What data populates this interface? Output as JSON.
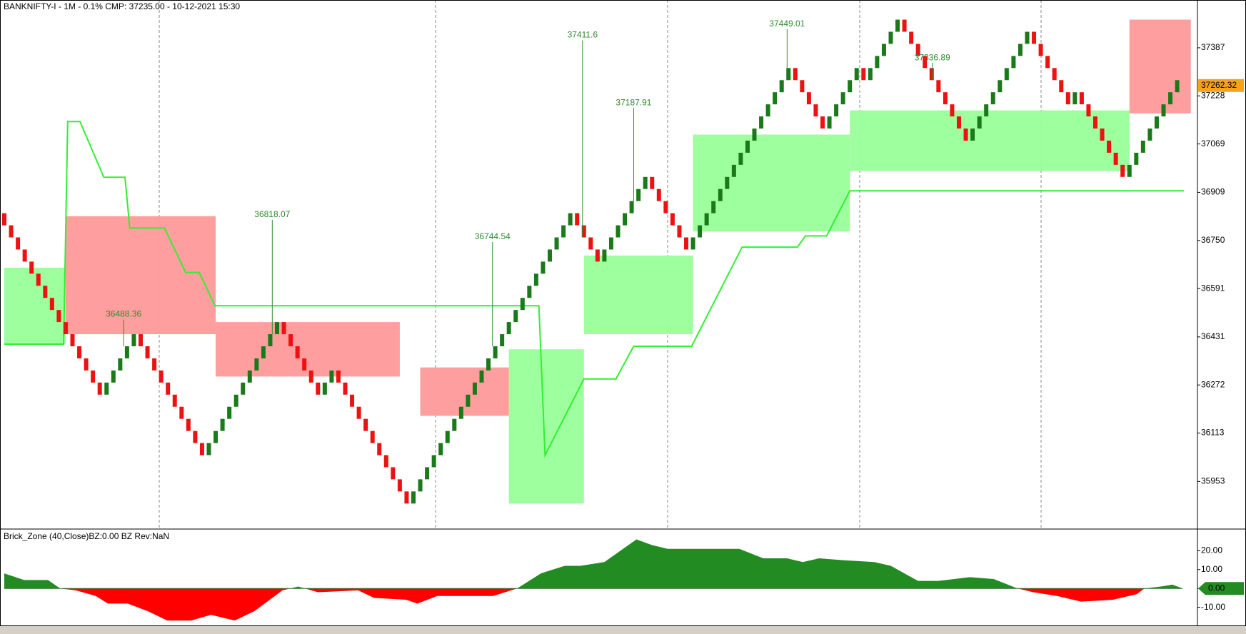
{
  "chart_data": [
    {
      "type": "renko",
      "title": "BANKNIFTY-I - 1M - 0.1% CMP: 37235.00 - 10-12-2021 15:30",
      "open": 36840,
      "values": [
        36800,
        36760,
        36720,
        36680,
        36640,
        36600,
        36560,
        36520,
        36480,
        36440,
        36400,
        36360,
        36320,
        36280,
        36240,
        36280,
        36320,
        36360,
        36400,
        36440,
        36400,
        36360,
        36320,
        36280,
        36240,
        36200,
        36160,
        36120,
        36080,
        36040,
        36080,
        36120,
        36160,
        36200,
        36240,
        36280,
        36320,
        36360,
        36400,
        36440,
        36480,
        36440,
        36400,
        36360,
        36320,
        36280,
        36240,
        36280,
        36320,
        36280,
        36240,
        36200,
        36160,
        36120,
        36080,
        36040,
        36000,
        35960,
        35920,
        35880,
        35920,
        35960,
        36000,
        36040,
        36080,
        36120,
        36160,
        36200,
        36240,
        36280,
        36320,
        36360,
        36400,
        36440,
        36480,
        36520,
        36560,
        36600,
        36640,
        36680,
        36720,
        36760,
        36800,
        36840,
        36800,
        36760,
        36720,
        36680,
        36720,
        36760,
        36800,
        36840,
        36880,
        36920,
        36960,
        36920,
        36880,
        36840,
        36800,
        36760,
        36720,
        36760,
        36800,
        36840,
        36880,
        36920,
        36960,
        37000,
        37040,
        37080,
        37120,
        37160,
        37200,
        37240,
        37280,
        37320,
        37280,
        37240,
        37200,
        37160,
        37120,
        37160,
        37200,
        37240,
        37280,
        37320,
        37280,
        37320,
        37360,
        37400,
        37440,
        37480,
        37440,
        37400,
        37360,
        37320,
        37280,
        37240,
        37200,
        37160,
        37120,
        37080,
        37120,
        37160,
        37200,
        37240,
        37280,
        37320,
        37360,
        37400,
        37440,
        37400,
        37360,
        37320,
        37280,
        37240,
        37200,
        37240,
        37200,
        37160,
        37120,
        37080,
        37040,
        37000,
        36960,
        37000,
        37040,
        37080,
        37120,
        37160,
        37200,
        37240,
        37280
      ],
      "up_color": "#1a7a1a",
      "down_color": "#ee1111",
      "ylim": [
        35798,
        37545
      ],
      "yticks": [
        35953,
        36113,
        36272,
        36431,
        36591,
        36750,
        36909,
        37069,
        37228,
        37387
      ],
      "zones": [
        {
          "color": "#99ff99",
          "start": 0,
          "end": 9,
          "lower": 36407,
          "upper": 36660
        },
        {
          "color": "#ff9999",
          "start": 9,
          "end": 31,
          "lower": 36440,
          "upper": 36830
        },
        {
          "color": "#ff9999",
          "start": 31,
          "end": 58,
          "lower": 36300,
          "upper": 36480
        },
        {
          "color": "#ff9999",
          "start": 61,
          "end": 74,
          "lower": 36170,
          "upper": 36330
        },
        {
          "color": "#99ff99",
          "start": 74,
          "end": 85,
          "lower": 35880,
          "upper": 36390
        },
        {
          "color": "#99ff99",
          "start": 85,
          "end": 101,
          "lower": 36440,
          "upper": 36700
        },
        {
          "color": "#99ff99",
          "start": 101,
          "end": 124,
          "lower": 36780,
          "upper": 37100
        },
        {
          "color": "#99ff99",
          "start": 124,
          "end": 165,
          "lower": 36980,
          "upper": 37180
        },
        {
          "color": "#ff9999",
          "start": 165,
          "end": 174,
          "lower": 37170,
          "upper": 37480
        }
      ],
      "stop_line": {
        "color": "#33ee33",
        "x": [
          0,
          8.7,
          9.3,
          11.1,
          14.6,
          17.7,
          18.4,
          23.5,
          26.6,
          28.6,
          30.9,
          78.4,
          79.3,
          85,
          89.7,
          92.3,
          100.8,
          108.2,
          116.3,
          117.5,
          120.6,
          124,
          173
        ],
        "values": [
          36407,
          36407,
          37143,
          37143,
          36959,
          36959,
          36791,
          36791,
          36644,
          36644,
          36534,
          36534,
          36040,
          36292,
          36292,
          36400,
          36400,
          36728,
          36728,
          36765,
          36765,
          36914,
          36914
        ]
      },
      "annotations": [
        {
          "x": 17.5,
          "value": 36488.36
        },
        {
          "x": 39.3,
          "value": 36818.07
        },
        {
          "x": 71.6,
          "value": 36744.54
        },
        {
          "x": 84.8,
          "value": 37411.6
        },
        {
          "x": 92.3,
          "value": 37187.91
        },
        {
          "x": 114.8,
          "value": 37449.01
        },
        {
          "x": 136.1,
          "value": 37336.89
        }
      ],
      "last_price": 37262.32,
      "last_price_color": "#f7a21b"
    },
    {
      "type": "area",
      "title": "Brick_Zone (40,Close)BZ:0.00 BZ Rev:NaN",
      "x": [
        0,
        2.9,
        6.4,
        8.2,
        10.5,
        13.4,
        15.2,
        18.1,
        21,
        23.9,
        27.4,
        30.3,
        33.8,
        36.7,
        40.8,
        43.1,
        46,
        51.9,
        54.2,
        58.9,
        60.6,
        63.5,
        71.7,
        75.2,
        78.7,
        82.2,
        84.5,
        88,
        92.7,
        95,
        97.3,
        107.8,
        111.3,
        114.8,
        117.1,
        119.5,
        123,
        127.6,
        130,
        134,
        137,
        141.6,
        145.1,
        148.6,
        150.9,
        154.4,
        157.9,
        162.6,
        166.1,
        167.2,
        169.6,
        171.3,
        172.8
      ],
      "values": [
        8,
        4.5,
        4.5,
        0,
        -1,
        -4,
        -8,
        -8,
        -12,
        -17,
        -17,
        -14,
        -17,
        -12,
        -1,
        1,
        -2,
        -1,
        -5,
        -6,
        -8,
        -4,
        -4,
        0,
        8,
        12,
        12,
        14,
        26,
        23,
        21,
        21,
        16,
        16,
        14,
        16,
        15,
        14,
        12,
        4,
        4,
        6,
        5,
        0,
        -2,
        -4,
        -7,
        -6,
        -3,
        0,
        1,
        2,
        0
      ],
      "pos_color": "#228b22",
      "neg_color": "#ff0000",
      "current_color": "#228b22",
      "ylim": [
        -20,
        30
      ],
      "yticks": [
        {
          "value": 20,
          "label": "20.00"
        },
        {
          "value": 10,
          "label": "10.00"
        },
        {
          "value": 0,
          "label": "0.00"
        },
        {
          "value": -10,
          "label": "-10.00"
        }
      ]
    }
  ]
}
